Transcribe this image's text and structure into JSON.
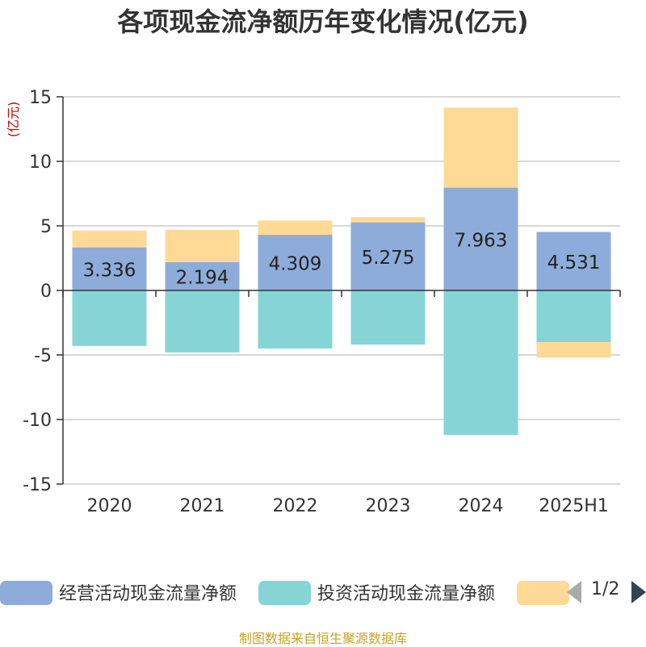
{
  "chart_data": {
    "type": "bar",
    "stacked": true,
    "title": "各项现金流净额历年变化情况(亿元)",
    "ylabel": "(亿元)",
    "ylim": [
      -15,
      15
    ],
    "yticks": [
      15,
      10,
      5,
      0,
      -5,
      -10,
      -15
    ],
    "grid": true,
    "categories": [
      "2020",
      "2021",
      "2022",
      "2023",
      "2024",
      "2025H1"
    ],
    "series": [
      {
        "name": "经营活动现金流量净额",
        "color": "#8eacd9",
        "values": [
          3.336,
          2.194,
          4.309,
          5.275,
          7.963,
          4.531
        ],
        "data_labels": [
          "3.336",
          "2.194",
          "4.309",
          "5.275",
          "7.963",
          "4.531"
        ]
      },
      {
        "name": "投资活动现金流量净额",
        "color": "#86d4d6",
        "values": [
          -4.3,
          -4.8,
          -4.5,
          -4.2,
          -11.2,
          -4.0
        ]
      },
      {
        "name": "",
        "color": "#ffd995",
        "values": [
          1.3,
          2.5,
          1.1,
          0.4,
          6.2,
          -1.2
        ]
      }
    ],
    "legend_position": "bottom"
  },
  "legend": {
    "pager_text": "1/2"
  },
  "source_note": "制图数据来自恒生聚源数据库"
}
